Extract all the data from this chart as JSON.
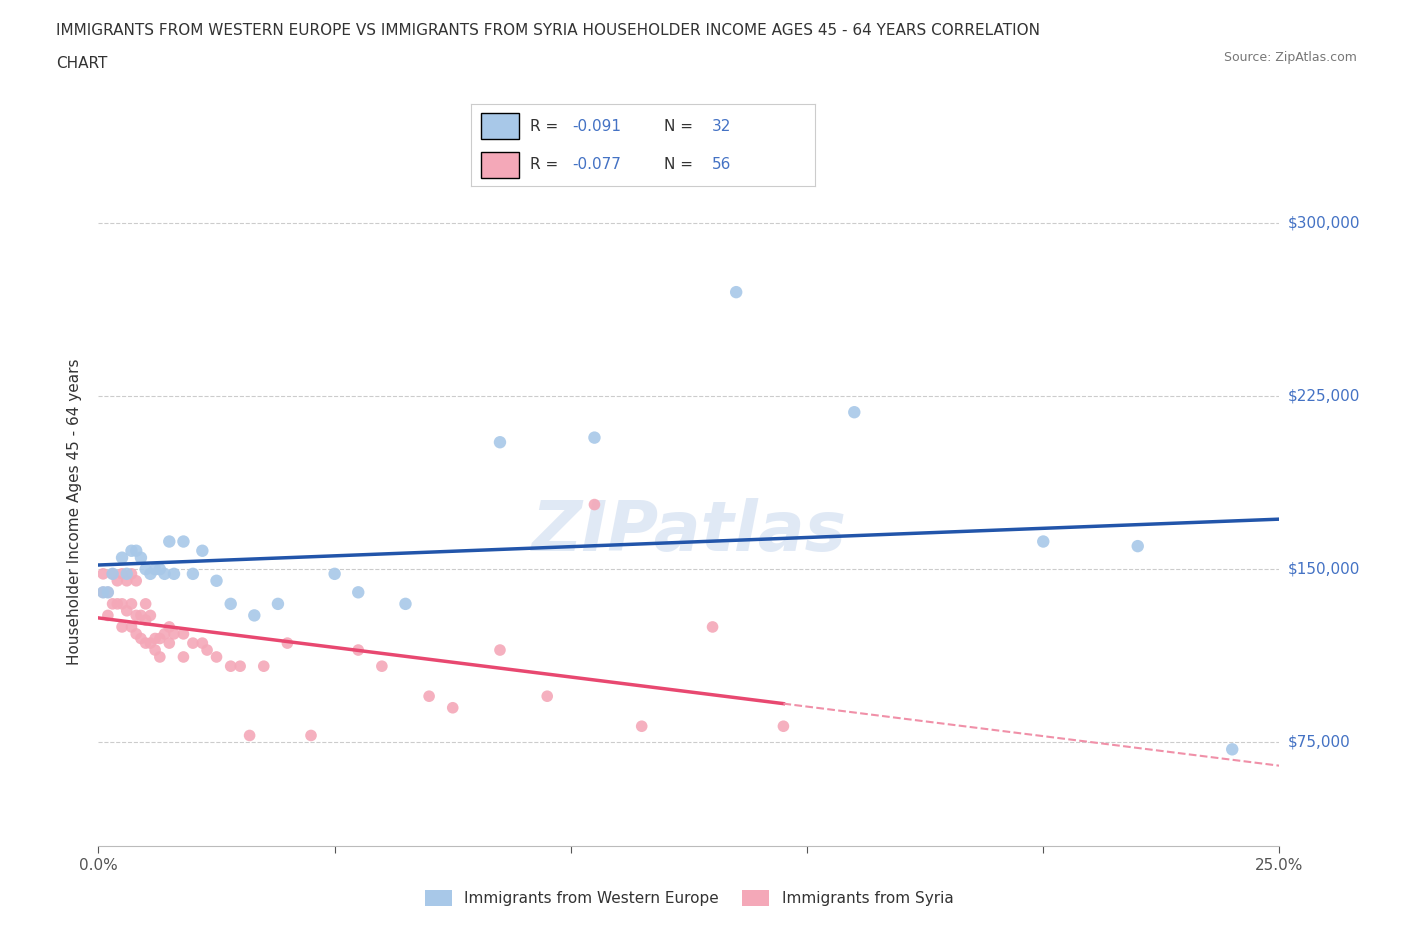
{
  "title_line1": "IMMIGRANTS FROM WESTERN EUROPE VS IMMIGRANTS FROM SYRIA HOUSEHOLDER INCOME AGES 45 - 64 YEARS CORRELATION",
  "title_line2": "CHART",
  "source_text": "Source: ZipAtlas.com",
  "watermark": "ZIPatlas",
  "ylabel": "Householder Income Ages 45 - 64 years",
  "xlim": [
    0.0,
    0.25
  ],
  "ylim": [
    30000,
    320000
  ],
  "xticks": [
    0.0,
    0.05,
    0.1,
    0.15,
    0.2,
    0.25
  ],
  "xtick_labels": [
    "0.0%",
    "",
    "",
    "",
    "",
    "25.0%"
  ],
  "ytick_vals": [
    75000,
    150000,
    225000,
    300000
  ],
  "ytick_labels": [
    "$75,000",
    "$150,000",
    "$225,000",
    "$300,000"
  ],
  "blue_R": -0.091,
  "blue_N": 32,
  "pink_R": -0.077,
  "pink_N": 56,
  "blue_color": "#A8C8E8",
  "pink_color": "#F4A8B8",
  "blue_line_color": "#2255AA",
  "pink_line_color": "#E84870",
  "pink_dash_color": "#F090A8",
  "legend1_label": "Immigrants from Western Europe",
  "legend2_label": "Immigrants from Syria",
  "blue_x": [
    0.001,
    0.002,
    0.003,
    0.005,
    0.006,
    0.007,
    0.008,
    0.009,
    0.01,
    0.011,
    0.012,
    0.013,
    0.014,
    0.015,
    0.016,
    0.018,
    0.02,
    0.022,
    0.025,
    0.028,
    0.033,
    0.038,
    0.05,
    0.055,
    0.065,
    0.085,
    0.105,
    0.135,
    0.16,
    0.2,
    0.22,
    0.24
  ],
  "blue_y": [
    140000,
    140000,
    148000,
    155000,
    148000,
    158000,
    158000,
    155000,
    150000,
    148000,
    150000,
    150000,
    148000,
    162000,
    148000,
    162000,
    148000,
    158000,
    145000,
    135000,
    130000,
    135000,
    148000,
    140000,
    135000,
    205000,
    207000,
    270000,
    218000,
    162000,
    160000,
    72000
  ],
  "pink_x": [
    0.001,
    0.001,
    0.002,
    0.002,
    0.003,
    0.003,
    0.004,
    0.004,
    0.005,
    0.005,
    0.005,
    0.006,
    0.006,
    0.007,
    0.007,
    0.007,
    0.008,
    0.008,
    0.008,
    0.009,
    0.009,
    0.01,
    0.01,
    0.01,
    0.011,
    0.011,
    0.012,
    0.012,
    0.013,
    0.013,
    0.014,
    0.015,
    0.015,
    0.016,
    0.018,
    0.018,
    0.02,
    0.022,
    0.023,
    0.025,
    0.028,
    0.03,
    0.032,
    0.035,
    0.04,
    0.045,
    0.055,
    0.06,
    0.07,
    0.075,
    0.085,
    0.095,
    0.105,
    0.115,
    0.13,
    0.145
  ],
  "pink_y": [
    148000,
    140000,
    140000,
    130000,
    148000,
    135000,
    145000,
    135000,
    148000,
    135000,
    125000,
    145000,
    132000,
    148000,
    135000,
    125000,
    145000,
    130000,
    122000,
    130000,
    120000,
    135000,
    128000,
    118000,
    130000,
    118000,
    120000,
    115000,
    120000,
    112000,
    122000,
    125000,
    118000,
    122000,
    122000,
    112000,
    118000,
    118000,
    115000,
    112000,
    108000,
    108000,
    78000,
    108000,
    118000,
    78000,
    115000,
    108000,
    95000,
    90000,
    115000,
    95000,
    178000,
    82000,
    125000,
    82000
  ],
  "background_color": "#FFFFFF",
  "grid_color": "#CCCCCC"
}
